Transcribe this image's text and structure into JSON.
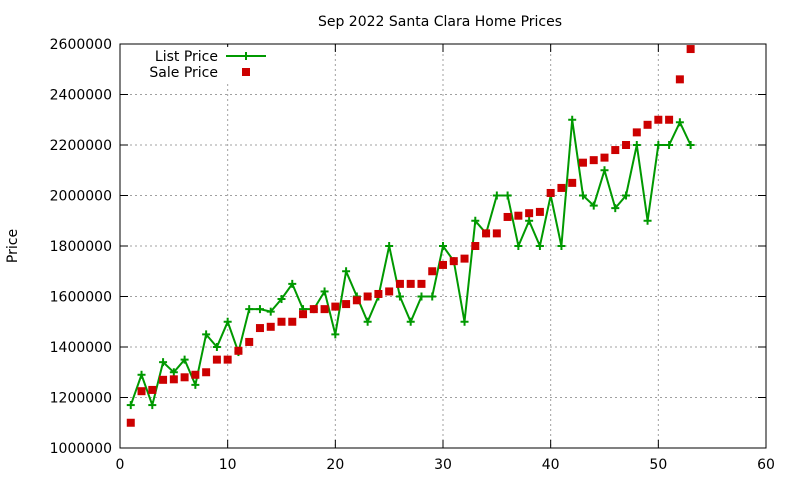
{
  "chart_data": {
    "type": "scatter",
    "title": "Sep 2022 Santa Clara Home Prices",
    "xlabel": "",
    "ylabel": "Price",
    "xlim": [
      0,
      60
    ],
    "ylim": [
      1000000,
      2600000
    ],
    "x_ticks": [
      0,
      10,
      20,
      30,
      40,
      50,
      60
    ],
    "y_ticks": [
      1000000,
      1200000,
      1400000,
      1600000,
      1800000,
      2000000,
      2200000,
      2400000,
      2600000
    ],
    "grid": true,
    "legend_position": "top-left",
    "series": [
      {
        "name": "List Price",
        "style": "line-with-plus-markers",
        "color": "#009900",
        "points": [
          [
            1,
            1170000
          ],
          [
            2,
            1290000
          ],
          [
            3,
            1170000
          ],
          [
            4,
            1340000
          ],
          [
            5,
            1300000
          ],
          [
            6,
            1350000
          ],
          [
            7,
            1250000
          ],
          [
            8,
            1450000
          ],
          [
            9,
            1400000
          ],
          [
            10,
            1500000
          ],
          [
            11,
            1380000
          ],
          [
            12,
            1550000
          ],
          [
            13,
            1550000
          ],
          [
            14,
            1540000
          ],
          [
            15,
            1590000
          ],
          [
            16,
            1650000
          ],
          [
            17,
            1550000
          ],
          [
            18,
            1550000
          ],
          [
            19,
            1620000
          ],
          [
            20,
            1450000
          ],
          [
            21,
            1700000
          ],
          [
            22,
            1600000
          ],
          [
            23,
            1500000
          ],
          [
            24,
            1600000
          ],
          [
            25,
            1800000
          ],
          [
            26,
            1600000
          ],
          [
            27,
            1500000
          ],
          [
            28,
            1600000
          ],
          [
            29,
            1600000
          ],
          [
            30,
            1800000
          ],
          [
            31,
            1740000
          ],
          [
            32,
            1500000
          ],
          [
            33,
            1900000
          ],
          [
            34,
            1850000
          ],
          [
            35,
            2000000
          ],
          [
            36,
            2000000
          ],
          [
            37,
            1800000
          ],
          [
            38,
            1900000
          ],
          [
            39,
            1800000
          ],
          [
            40,
            2000000
          ],
          [
            41,
            1800000
          ],
          [
            42,
            2300000
          ],
          [
            43,
            2000000
          ],
          [
            44,
            1960000
          ],
          [
            45,
            2100000
          ],
          [
            46,
            1950000
          ],
          [
            47,
            2000000
          ],
          [
            48,
            2200000
          ],
          [
            49,
            1900000
          ],
          [
            50,
            2200000
          ],
          [
            51,
            2200000
          ],
          [
            52,
            2290000
          ],
          [
            53,
            2200000
          ]
        ]
      },
      {
        "name": "Sale Price",
        "style": "square-markers",
        "color": "#cc0000",
        "points": [
          [
            1,
            1100000
          ],
          [
            2,
            1225000
          ],
          [
            3,
            1230000
          ],
          [
            4,
            1270000
          ],
          [
            5,
            1272000
          ],
          [
            6,
            1280000
          ],
          [
            7,
            1290000
          ],
          [
            8,
            1300000
          ],
          [
            9,
            1350000
          ],
          [
            10,
            1350000
          ],
          [
            11,
            1385000
          ],
          [
            12,
            1420000
          ],
          [
            13,
            1475000
          ],
          [
            14,
            1480000
          ],
          [
            15,
            1500000
          ],
          [
            16,
            1500000
          ],
          [
            17,
            1530000
          ],
          [
            18,
            1550000
          ],
          [
            19,
            1550000
          ],
          [
            20,
            1560000
          ],
          [
            21,
            1570000
          ],
          [
            22,
            1585000
          ],
          [
            23,
            1600000
          ],
          [
            24,
            1610000
          ],
          [
            25,
            1620000
          ],
          [
            26,
            1650000
          ],
          [
            27,
            1650000
          ],
          [
            28,
            1650000
          ],
          [
            29,
            1700000
          ],
          [
            30,
            1725000
          ],
          [
            31,
            1740000
          ],
          [
            32,
            1750000
          ],
          [
            33,
            1800000
          ],
          [
            34,
            1850000
          ],
          [
            35,
            1850000
          ],
          [
            36,
            1915000
          ],
          [
            37,
            1920000
          ],
          [
            38,
            1930000
          ],
          [
            39,
            1935000
          ],
          [
            40,
            2010000
          ],
          [
            41,
            2030000
          ],
          [
            42,
            2050000
          ],
          [
            43,
            2130000
          ],
          [
            44,
            2140000
          ],
          [
            45,
            2150000
          ],
          [
            46,
            2180000
          ],
          [
            47,
            2200000
          ],
          [
            48,
            2250000
          ],
          [
            49,
            2280000
          ],
          [
            50,
            2300000
          ],
          [
            51,
            2300000
          ],
          [
            52,
            2460000
          ],
          [
            53,
            2580000
          ]
        ]
      }
    ]
  }
}
